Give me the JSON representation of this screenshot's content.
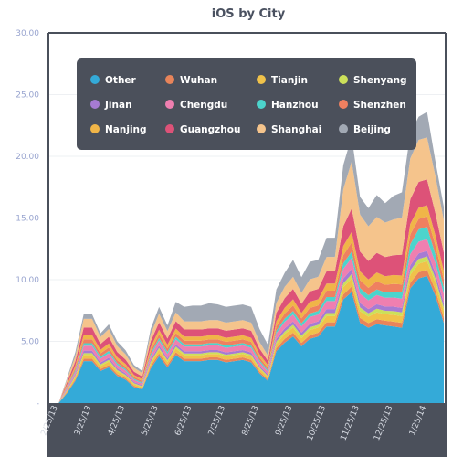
{
  "chart_data": {
    "type": "area",
    "stacked": true,
    "title": "iOS by City",
    "xlabel": "",
    "ylabel": "",
    "ylim": [
      0,
      30
    ],
    "yticks": [
      {
        "value": 0,
        "label": "-"
      },
      {
        "value": 5,
        "label": "5.00"
      },
      {
        "value": 10,
        "label": "10.00"
      },
      {
        "value": 15,
        "label": "15.00"
      },
      {
        "value": 20,
        "label": "20.00"
      },
      {
        "value": 25,
        "label": "25.00"
      },
      {
        "value": 30,
        "label": "30.00"
      }
    ],
    "xticks": [
      {
        "index": 0,
        "label": "2/25/13"
      },
      {
        "index": 4,
        "label": "3/25/13"
      },
      {
        "index": 8,
        "label": "4/25/13"
      },
      {
        "index": 12,
        "label": "5/25/13"
      },
      {
        "index": 16,
        "label": "6/25/13"
      },
      {
        "index": 20,
        "label": "7/25/13"
      },
      {
        "index": 24,
        "label": "8/25/13"
      },
      {
        "index": 28,
        "label": "9/25/13"
      },
      {
        "index": 32,
        "label": "10/25/13"
      },
      {
        "index": 36,
        "label": "11/25/13"
      },
      {
        "index": 40,
        "label": "12/25/13"
      },
      {
        "index": 44,
        "label": "1/25/14"
      }
    ],
    "grid": true,
    "legend_position": "top",
    "x": [
      "2/25/13",
      "",
      "",
      "",
      "3/25/13",
      "",
      "",
      "",
      "4/25/13",
      "",
      "",
      "",
      "5/25/13",
      "",
      "",
      "",
      "6/25/13",
      "",
      "",
      "",
      "7/25/13",
      "",
      "",
      "",
      "8/25/13",
      "",
      "",
      "",
      "9/25/13",
      "",
      "",
      "",
      "10/25/13",
      "",
      "",
      "",
      "11/25/13",
      "",
      "",
      "",
      "12/25/13",
      "",
      "",
      "",
      "1/25/14",
      "",
      "",
      ""
    ],
    "series": [
      {
        "name": "Other",
        "color": "#34aad8",
        "values": [
          0,
          0,
          0.8,
          1.8,
          3.4,
          3.4,
          2.6,
          2.9,
          2.2,
          1.9,
          1.3,
          1.1,
          2.8,
          3.8,
          2.9,
          3.9,
          3.4,
          3.4,
          3.4,
          3.5,
          3.5,
          3.3,
          3.4,
          3.5,
          3.3,
          2.4,
          1.8,
          4.2,
          4.9,
          5.4,
          4.6,
          5.2,
          5.4,
          6.2,
          6.2,
          8.4,
          9.0,
          6.5,
          6.1,
          6.4,
          6.3,
          6.2,
          6.1,
          9.3,
          10.1,
          10.3,
          8.7,
          6.5
        ]
      },
      {
        "name": "Wuhan",
        "color": "#e8845a",
        "values": [
          0,
          0,
          0.08,
          0.12,
          0.2,
          0.2,
          0.16,
          0.18,
          0.15,
          0.12,
          0.1,
          0.08,
          0.18,
          0.22,
          0.18,
          0.22,
          0.2,
          0.2,
          0.2,
          0.2,
          0.2,
          0.2,
          0.2,
          0.2,
          0.2,
          0.15,
          0.12,
          0.25,
          0.3,
          0.3,
          0.28,
          0.3,
          0.3,
          0.35,
          0.35,
          0.4,
          0.45,
          0.4,
          0.38,
          0.4,
          0.38,
          0.4,
          0.4,
          0.45,
          0.5,
          0.5,
          0.45,
          0.4
        ]
      },
      {
        "name": "Tianjin",
        "color": "#f0c24a",
        "values": [
          0,
          0,
          0.1,
          0.18,
          0.3,
          0.3,
          0.25,
          0.28,
          0.22,
          0.18,
          0.14,
          0.12,
          0.25,
          0.3,
          0.26,
          0.3,
          0.28,
          0.28,
          0.28,
          0.28,
          0.28,
          0.28,
          0.28,
          0.28,
          0.28,
          0.22,
          0.18,
          0.35,
          0.4,
          0.42,
          0.38,
          0.42,
          0.42,
          0.5,
          0.5,
          0.6,
          0.65,
          0.55,
          0.52,
          0.55,
          0.52,
          0.55,
          0.55,
          0.65,
          0.7,
          0.7,
          0.62,
          0.55
        ]
      },
      {
        "name": "Shenyang",
        "color": "#cce05a",
        "values": [
          0,
          0,
          0.05,
          0.1,
          0.15,
          0.15,
          0.12,
          0.14,
          0.11,
          0.09,
          0.07,
          0.06,
          0.12,
          0.15,
          0.13,
          0.15,
          0.14,
          0.14,
          0.14,
          0.14,
          0.14,
          0.14,
          0.14,
          0.14,
          0.14,
          0.11,
          0.09,
          0.18,
          0.2,
          0.22,
          0.2,
          0.22,
          0.22,
          0.25,
          0.25,
          0.3,
          0.35,
          0.3,
          0.28,
          0.3,
          0.28,
          0.3,
          0.3,
          0.35,
          0.38,
          0.38,
          0.33,
          0.3
        ]
      },
      {
        "name": "Jinan",
        "color": "#a67bd3",
        "values": [
          0,
          0,
          0.06,
          0.12,
          0.2,
          0.2,
          0.16,
          0.18,
          0.14,
          0.12,
          0.09,
          0.08,
          0.16,
          0.2,
          0.17,
          0.2,
          0.18,
          0.18,
          0.18,
          0.18,
          0.18,
          0.18,
          0.18,
          0.18,
          0.18,
          0.14,
          0.12,
          0.22,
          0.26,
          0.28,
          0.25,
          0.28,
          0.28,
          0.32,
          0.32,
          0.38,
          0.42,
          0.36,
          0.34,
          0.36,
          0.34,
          0.36,
          0.36,
          0.42,
          0.45,
          0.45,
          0.4,
          0.36
        ]
      },
      {
        "name": "Chengdu",
        "color": "#ef7fb0",
        "values": [
          0,
          0,
          0.12,
          0.22,
          0.4,
          0.4,
          0.32,
          0.36,
          0.28,
          0.24,
          0.18,
          0.15,
          0.32,
          0.4,
          0.34,
          0.4,
          0.38,
          0.38,
          0.38,
          0.38,
          0.38,
          0.38,
          0.38,
          0.38,
          0.38,
          0.3,
          0.24,
          0.45,
          0.52,
          0.56,
          0.5,
          0.56,
          0.56,
          0.65,
          0.65,
          0.8,
          0.9,
          0.75,
          0.7,
          0.75,
          0.72,
          0.75,
          0.75,
          0.9,
          0.95,
          0.95,
          0.85,
          0.75
        ]
      },
      {
        "name": "Hanzhou",
        "color": "#4cd4cc",
        "values": [
          0,
          0,
          0.06,
          0.12,
          0.2,
          0.2,
          0.16,
          0.18,
          0.14,
          0.12,
          0.09,
          0.08,
          0.16,
          0.2,
          0.17,
          0.2,
          0.18,
          0.18,
          0.18,
          0.18,
          0.18,
          0.18,
          0.18,
          0.18,
          0.18,
          0.14,
          0.12,
          0.22,
          0.26,
          0.28,
          0.25,
          0.28,
          0.28,
          0.32,
          0.32,
          0.45,
          0.5,
          0.45,
          0.42,
          0.45,
          0.42,
          0.45,
          0.5,
          0.8,
          1.0,
          1.0,
          0.7,
          0.5
        ]
      },
      {
        "name": "Shenzhen",
        "color": "#ef8060",
        "values": [
          0,
          0,
          0.1,
          0.18,
          0.32,
          0.32,
          0.26,
          0.29,
          0.23,
          0.19,
          0.15,
          0.12,
          0.26,
          0.32,
          0.27,
          0.32,
          0.3,
          0.3,
          0.3,
          0.3,
          0.3,
          0.3,
          0.3,
          0.3,
          0.3,
          0.24,
          0.19,
          0.36,
          0.42,
          0.45,
          0.4,
          0.45,
          0.45,
          0.52,
          0.52,
          0.65,
          0.75,
          0.65,
          0.6,
          0.65,
          0.62,
          0.65,
          0.65,
          0.8,
          0.85,
          0.85,
          0.75,
          0.65
        ]
      },
      {
        "name": "Nanjing",
        "color": "#f0b548",
        "values": [
          0,
          0,
          0.1,
          0.2,
          0.35,
          0.35,
          0.28,
          0.32,
          0.25,
          0.21,
          0.16,
          0.14,
          0.28,
          0.35,
          0.3,
          0.35,
          0.33,
          0.33,
          0.33,
          0.33,
          0.33,
          0.33,
          0.33,
          0.33,
          0.33,
          0.26,
          0.21,
          0.4,
          0.46,
          0.5,
          0.44,
          0.5,
          0.5,
          0.58,
          0.58,
          0.75,
          0.85,
          0.72,
          0.68,
          0.72,
          0.7,
          0.72,
          0.72,
          0.85,
          0.9,
          0.9,
          0.8,
          0.7
        ]
      },
      {
        "name": "Guangzhou",
        "color": "#dd5278",
        "values": [
          0,
          0,
          0.2,
          0.35,
          0.6,
          0.6,
          0.48,
          0.54,
          0.42,
          0.36,
          0.27,
          0.23,
          0.48,
          0.6,
          0.51,
          0.6,
          0.57,
          0.57,
          0.57,
          0.57,
          0.57,
          0.57,
          0.57,
          0.57,
          0.57,
          0.45,
          0.36,
          0.68,
          0.78,
          0.84,
          0.75,
          0.84,
          0.84,
          1.0,
          1.0,
          1.6,
          1.9,
          1.6,
          1.5,
          1.6,
          1.55,
          1.6,
          1.7,
          2.0,
          2.1,
          2.1,
          1.8,
          1.5
        ]
      },
      {
        "name": "Shanghai",
        "color": "#f5c48c",
        "values": [
          0,
          0,
          0.22,
          0.4,
          0.7,
          0.7,
          0.56,
          0.63,
          0.49,
          0.42,
          0.32,
          0.27,
          0.56,
          0.7,
          0.6,
          0.7,
          0.66,
          0.66,
          0.66,
          0.66,
          0.66,
          0.66,
          0.66,
          0.66,
          0.66,
          0.53,
          0.42,
          0.8,
          0.92,
          0.98,
          0.88,
          0.98,
          0.98,
          1.15,
          1.15,
          3.0,
          3.8,
          3.0,
          2.8,
          2.9,
          2.8,
          2.9,
          3.0,
          3.3,
          3.4,
          3.4,
          3.0,
          2.6
        ]
      },
      {
        "name": "Beijing",
        "color": "#a2a9b4",
        "values": [
          0,
          0,
          0.11,
          0.33,
          0.38,
          0.38,
          0.3,
          0.38,
          0.37,
          0.33,
          0.22,
          0.16,
          0.44,
          0.56,
          0.47,
          0.86,
          1.18,
          1.28,
          1.28,
          1.37,
          1.28,
          1.28,
          1.28,
          1.27,
          1.28,
          1.06,
          0.85,
          1.09,
          1.14,
          1.37,
          1.27,
          1.41,
          1.37,
          1.56,
          1.56,
          1.97,
          2.03,
          1.42,
          1.48,
          1.78,
          1.57,
          1.92,
          2.05,
          2.05,
          1.87,
          2.07,
          1.2,
          1.1
        ]
      }
    ]
  }
}
